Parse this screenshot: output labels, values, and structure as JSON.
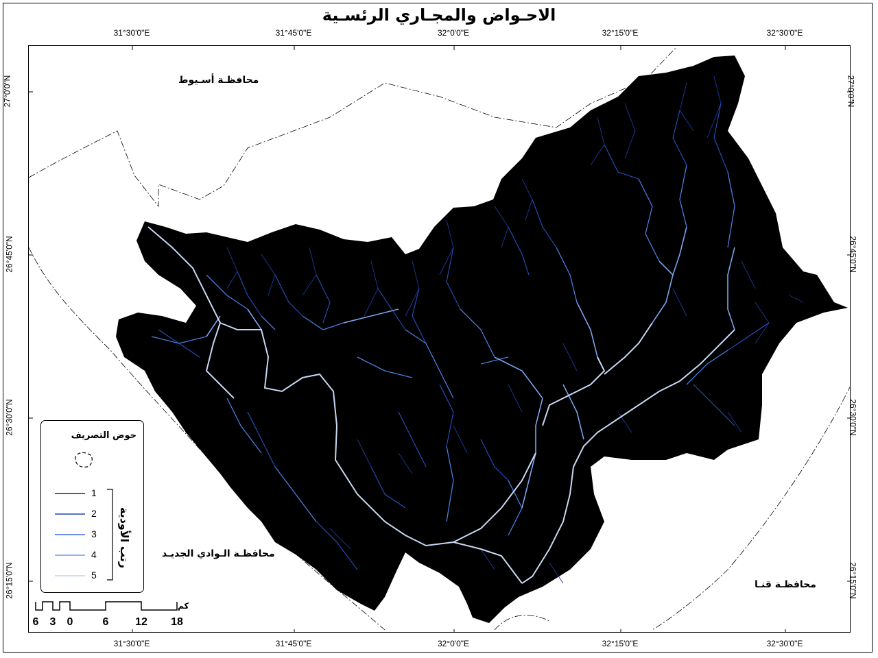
{
  "title": "الاحـواض والمجـاري الرئسـية",
  "longitude_labels": [
    "31°30'0\"E",
    "31°45'0\"E",
    "32°0'0\"E",
    "32°15'0\"E",
    "32°30'0\"E"
  ],
  "latitude_labels": [
    "27°0'0\"N",
    "26°45'0\"N",
    "26°30'0\"N",
    "26°15'0\"N"
  ],
  "governorates": {
    "assiut": "محافظـة أسـيوط",
    "new_valley": "محافظـة الـوادي الجديـد",
    "qena": "محافظـة قنـا"
  },
  "legend": {
    "basin_label": "حوض التصريف",
    "stream_order_title": "رتب الأودية",
    "orders": [
      {
        "label": "1",
        "color": "#10257a"
      },
      {
        "label": "2",
        "color": "#1a45b0"
      },
      {
        "label": "3",
        "color": "#3d6fd8"
      },
      {
        "label": "4",
        "color": "#6f9ae8"
      },
      {
        "label": "5",
        "color": "#c8d8f4"
      }
    ]
  },
  "scale_bar": {
    "unit": "كم",
    "ticks": [
      "6",
      "3",
      "0",
      "6",
      "12",
      "18"
    ]
  },
  "colors": {
    "basin_fill": "#000000",
    "border": "#000000",
    "background": "#ffffff"
  }
}
